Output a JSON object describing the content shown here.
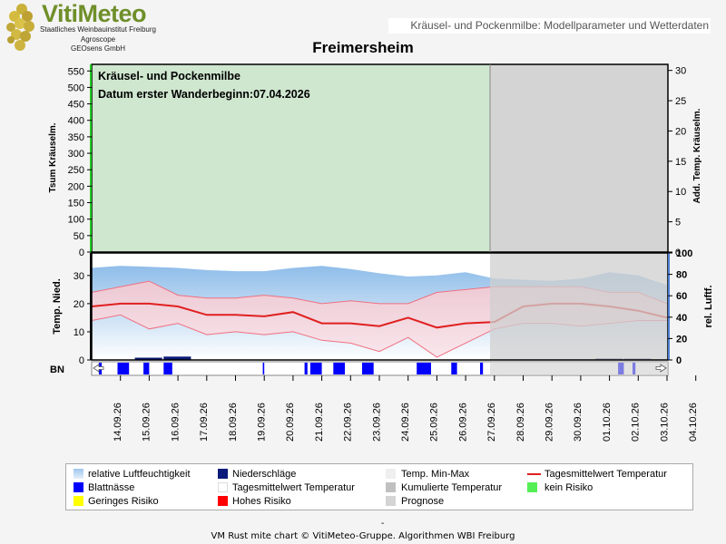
{
  "header": {
    "brand": "VitiMeteo",
    "org_lines": [
      "Staatliches Weinbauinstitut Freiburg",
      "Agroscope",
      "GEOsens GmbH"
    ],
    "subtitle": "Kräusel- und Pockenmilbe: Modellparameter und Wetterdaten",
    "station": "Freimersheim"
  },
  "annotations": {
    "line1": "Kräusel- und Pockenmilbe",
    "line2": "Datum  erster Wanderbeginn:07.04.2026"
  },
  "chart_data": [
    {
      "type": "area",
      "panel": "top",
      "ylabel_left": "Tsum Kräuselm.",
      "ylabel_right": "Add. Temp. Kräuselm.",
      "yticks_left": [
        "0",
        "50",
        "100",
        "150",
        "200",
        "250",
        "300",
        "350",
        "400",
        "450",
        "500",
        "550"
      ],
      "yticks_right": [
        "0",
        "5",
        "10",
        "15",
        "20",
        "25",
        "30"
      ],
      "ylim_left": [
        0,
        570
      ],
      "ylim_right": [
        0,
        31
      ],
      "risk_band": "kein Risiko",
      "forecast_start": "28.09.26"
    },
    {
      "type": "line",
      "panel": "middle",
      "ylabel_left": "Temp. Nied.",
      "ylabel_right": "rel. Luftf.",
      "yticks_left": [
        "0",
        "10",
        "20",
        "30"
      ],
      "yticks_right": [
        "0",
        "20",
        "40",
        "60",
        "80",
        "100"
      ],
      "ylim_left": [
        0,
        38
      ],
      "ylim_right": [
        0,
        100
      ],
      "x": [
        "14.09.26",
        "15.09.26",
        "16.09.26",
        "17.09.26",
        "18.09.26",
        "19.09.26",
        "20.09.26",
        "21.09.26",
        "22.09.26",
        "23.09.26",
        "24.09.26",
        "25.09.26",
        "26.09.26",
        "27.09.26",
        "28.09.26",
        "29.09.26",
        "30.09.26",
        "01.10.26",
        "02.10.26",
        "03.10.26",
        "04.10.26"
      ],
      "series": [
        {
          "name": "relative Luftfeuchtigkeit",
          "values": [
            86,
            88,
            87,
            86,
            84,
            83,
            83,
            86,
            88,
            85,
            81,
            78,
            79,
            82,
            76,
            75,
            74,
            76,
            82,
            79,
            70
          ]
        },
        {
          "name": "Temp. Min-Max (max)",
          "values": [
            24,
            26,
            28,
            23,
            22,
            22,
            23,
            22,
            20,
            21,
            20,
            20,
            24,
            25,
            26,
            26,
            26,
            26,
            24,
            24,
            20
          ]
        },
        {
          "name": "Temp. Min-Max (min)",
          "values": [
            14,
            16,
            11,
            13,
            9,
            10,
            9,
            10,
            7,
            6,
            3,
            8,
            1,
            6,
            11,
            13,
            13,
            12,
            13,
            14,
            14
          ]
        },
        {
          "name": "Tagesmittelwert Temperatur",
          "values": [
            19,
            20,
            20,
            19,
            16,
            16,
            15.5,
            17,
            13,
            13,
            12,
            15,
            11.5,
            13,
            13.5,
            19,
            20,
            20,
            19,
            17.5,
            15
          ]
        },
        {
          "name": "Niederschläge",
          "values": [
            0,
            0,
            0.8,
            1.2,
            0,
            0,
            0,
            0,
            0,
            0,
            0,
            0,
            0,
            0,
            0,
            0,
            0,
            0,
            0.5,
            0.3,
            0
          ]
        }
      ]
    },
    {
      "type": "bar",
      "panel": "bottom",
      "ylabel": "BN",
      "series": [
        {
          "name": "Blattnässe"
        }
      ]
    }
  ],
  "legend": [
    {
      "label": "relative Luftfeuchtigkeit",
      "color": "#9ec6ee"
    },
    {
      "label": "Niederschläge",
      "color": "#0a1a7a"
    },
    {
      "label": "Temp. Min-Max",
      "color": "#efefef"
    },
    {
      "label": "Tagesmittelwert Temperatur",
      "color": "#e02020"
    },
    {
      "label": "Blattnässe",
      "color": "#0000ff"
    },
    {
      "label": "Tagesmittelwert Temperatur",
      "color": "#ffffff"
    },
    {
      "label": "Kumulierte Temperatur",
      "color": "#c0c0c0"
    },
    {
      "label": "kein Risiko",
      "color": "#55ee55"
    },
    {
      "label": "Geringes Risiko",
      "color": "#ffff00"
    },
    {
      "label": "Hohes Risiko",
      "color": "#ff0000"
    },
    {
      "label": "Prognose",
      "color": "#d4d4d4"
    }
  ],
  "footer": {
    "dash": "-",
    "text": "VM Rust mite chart © VitiMeteo-Gruppe. Algorithmen WBI Freiburg"
  }
}
